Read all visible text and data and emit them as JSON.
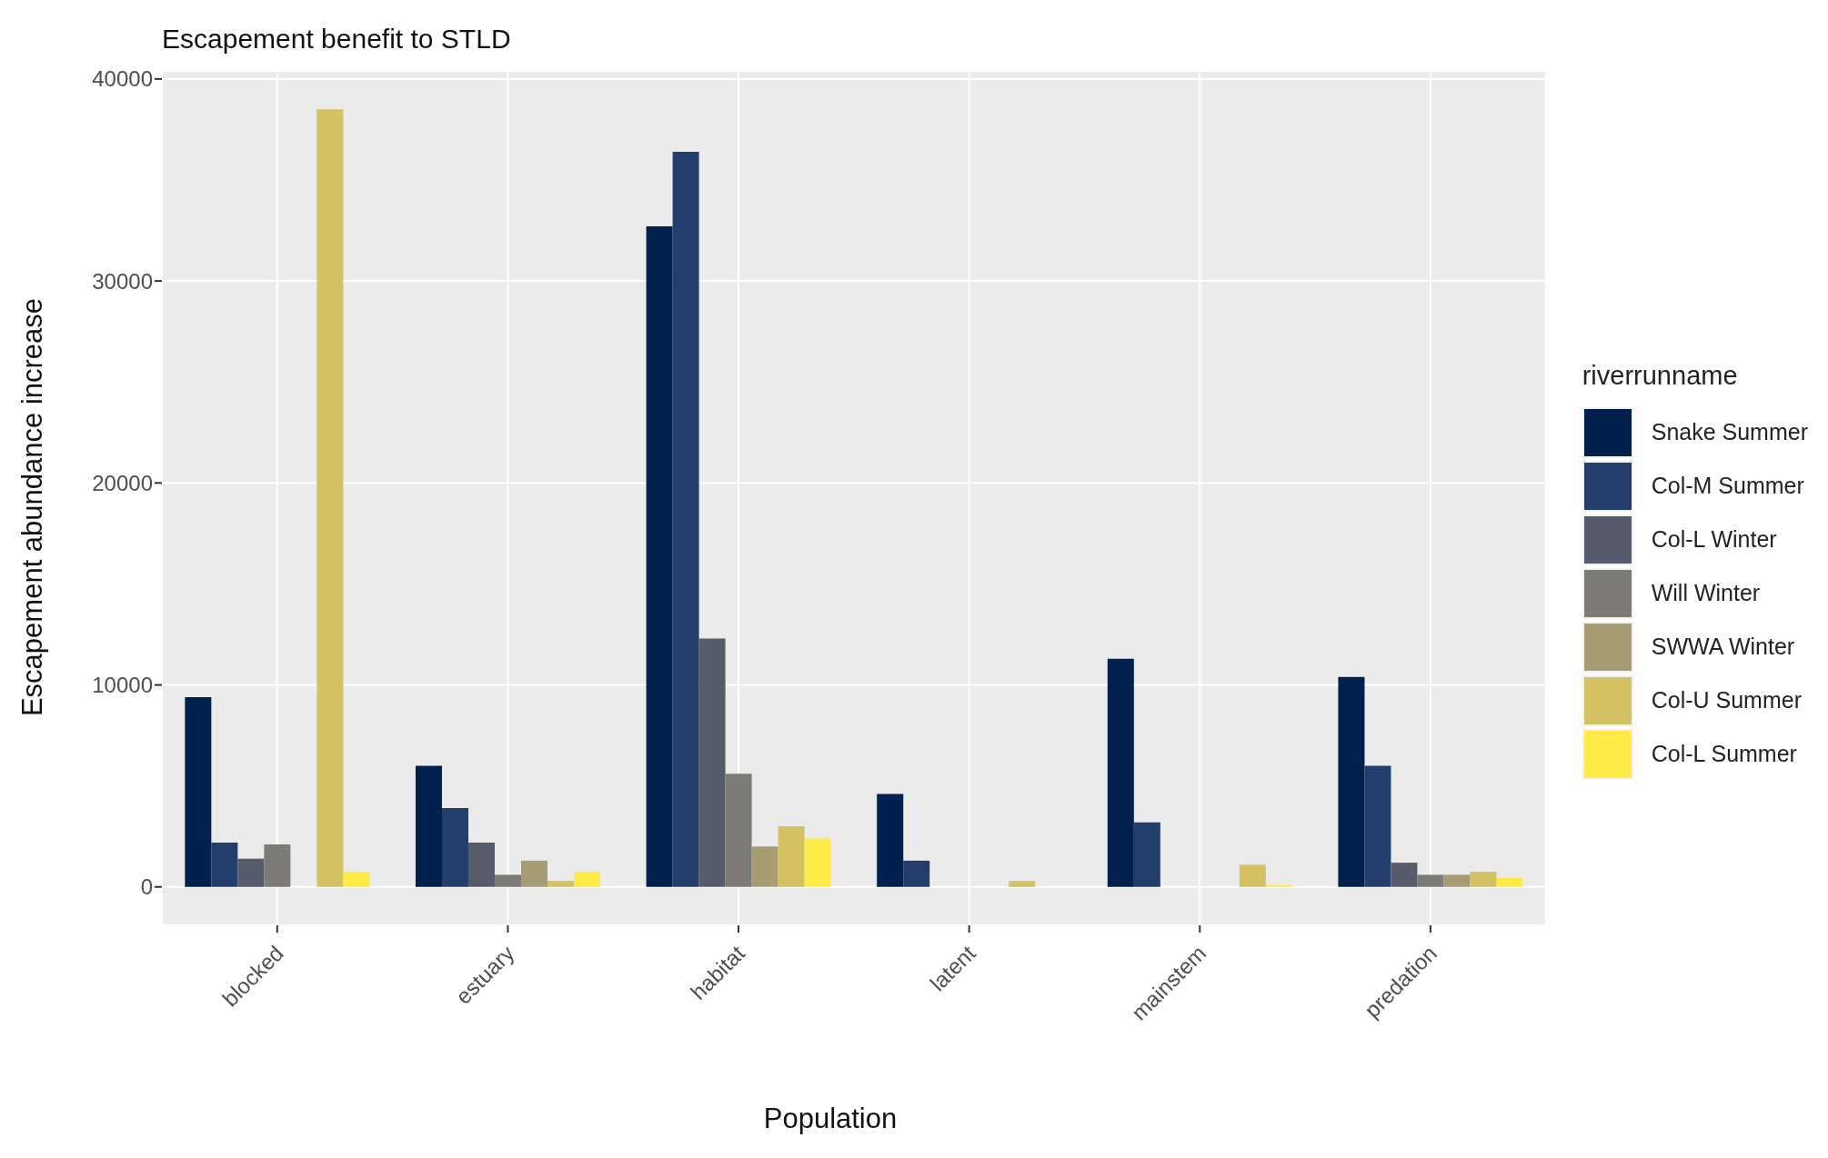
{
  "chart_data": {
    "type": "bar",
    "title": "Escapement benefit to  STLD",
    "xlabel": "Population",
    "ylabel": "Escapement abundance increase",
    "legend_title": "riverrunname",
    "categories": [
      "blocked",
      "estuary",
      "habitat",
      "latent",
      "mainstem",
      "predation"
    ],
    "series": [
      {
        "name": "Snake Summer",
        "color": "#00204d",
        "values": [
          9400,
          6000,
          32700,
          4600,
          11300,
          10400
        ]
      },
      {
        "name": "Col-M Summer",
        "color": "#233e6c",
        "values": [
          2200,
          3900,
          36400,
          1300,
          3200,
          6000
        ]
      },
      {
        "name": "Col-L Winter",
        "color": "#575c6d",
        "values": [
          1400,
          2200,
          12300,
          null,
          null,
          1200
        ]
      },
      {
        "name": "Will Winter",
        "color": "#7c7b78",
        "values": [
          2100,
          600,
          5600,
          null,
          null,
          600
        ]
      },
      {
        "name": "SWWA Winter",
        "color": "#a69d75",
        "values": [
          null,
          1300,
          2000,
          null,
          null,
          600
        ]
      },
      {
        "name": "Col-U Summer",
        "color": "#d3c164",
        "values": [
          38500,
          300,
          3000,
          300,
          1100,
          750
        ]
      },
      {
        "name": "Col-L Summer",
        "color": "#ffea46",
        "values": [
          750,
          750,
          2400,
          null,
          100,
          450
        ]
      }
    ],
    "ylim": [
      -1900,
      40400
    ],
    "yticks": [
      0,
      10000,
      20000,
      30000,
      40000
    ],
    "grid": true,
    "legend": "right"
  }
}
